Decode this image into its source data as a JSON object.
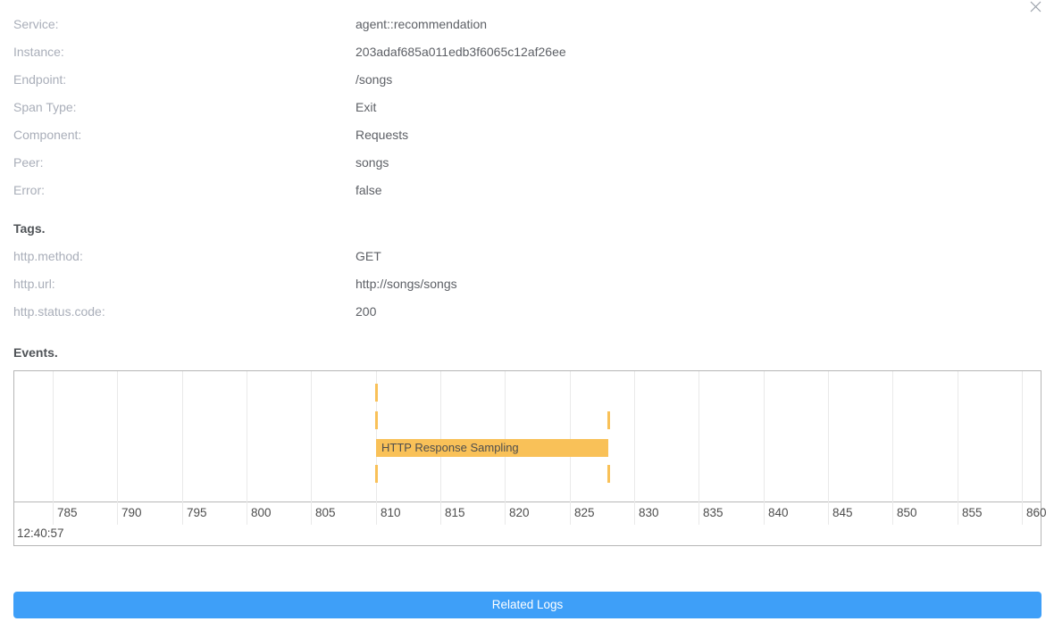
{
  "window": {
    "close_icon": "close-x"
  },
  "span_details": {
    "fields": [
      {
        "label": "Service:",
        "value": "agent::recommendation"
      },
      {
        "label": "Instance:",
        "value": "203adaf685a011edb3f6065c12af26ee"
      },
      {
        "label": "Endpoint:",
        "value": "/songs"
      },
      {
        "label": "Span Type:",
        "value": "Exit"
      },
      {
        "label": "Component:",
        "value": "Requests"
      },
      {
        "label": "Peer:",
        "value": "songs"
      },
      {
        "label": "Error:",
        "value": "false"
      }
    ]
  },
  "tags": {
    "heading": "Tags.",
    "fields": [
      {
        "label": "http.method:",
        "value": "GET"
      },
      {
        "label": "http.url:",
        "value": "http://songs/songs"
      },
      {
        "label": "http.status.code:",
        "value": "200"
      }
    ]
  },
  "events": {
    "heading": "Events."
  },
  "chart_data": {
    "type": "bar",
    "subtype": "event-timeline",
    "title": "",
    "xlabel": "",
    "ylabel": "",
    "grid": true,
    "x_axis": {
      "ticks": [
        785,
        790,
        795,
        800,
        805,
        810,
        815,
        820,
        825,
        830,
        835,
        840,
        845,
        850,
        855,
        860
      ],
      "range": [
        782,
        861.5
      ],
      "time_label": "12:40:57"
    },
    "rows": [
      {
        "events": [
          {
            "at": 810
          }
        ]
      },
      {
        "events": [
          {
            "at": 810
          },
          {
            "at": 828
          }
        ]
      },
      {
        "events": [
          {
            "start": 810,
            "end": 828,
            "label": "HTTP Response Sampling"
          }
        ]
      },
      {
        "events": [
          {
            "at": 810
          },
          {
            "at": 828
          }
        ]
      }
    ]
  },
  "footer": {
    "related_logs_label": "Related Logs"
  },
  "colors": {
    "primary_blue": "#3e9ff8",
    "event_orange": "#f9c158",
    "label_gray": "#a9aeb9",
    "value_gray": "#5d6066"
  }
}
